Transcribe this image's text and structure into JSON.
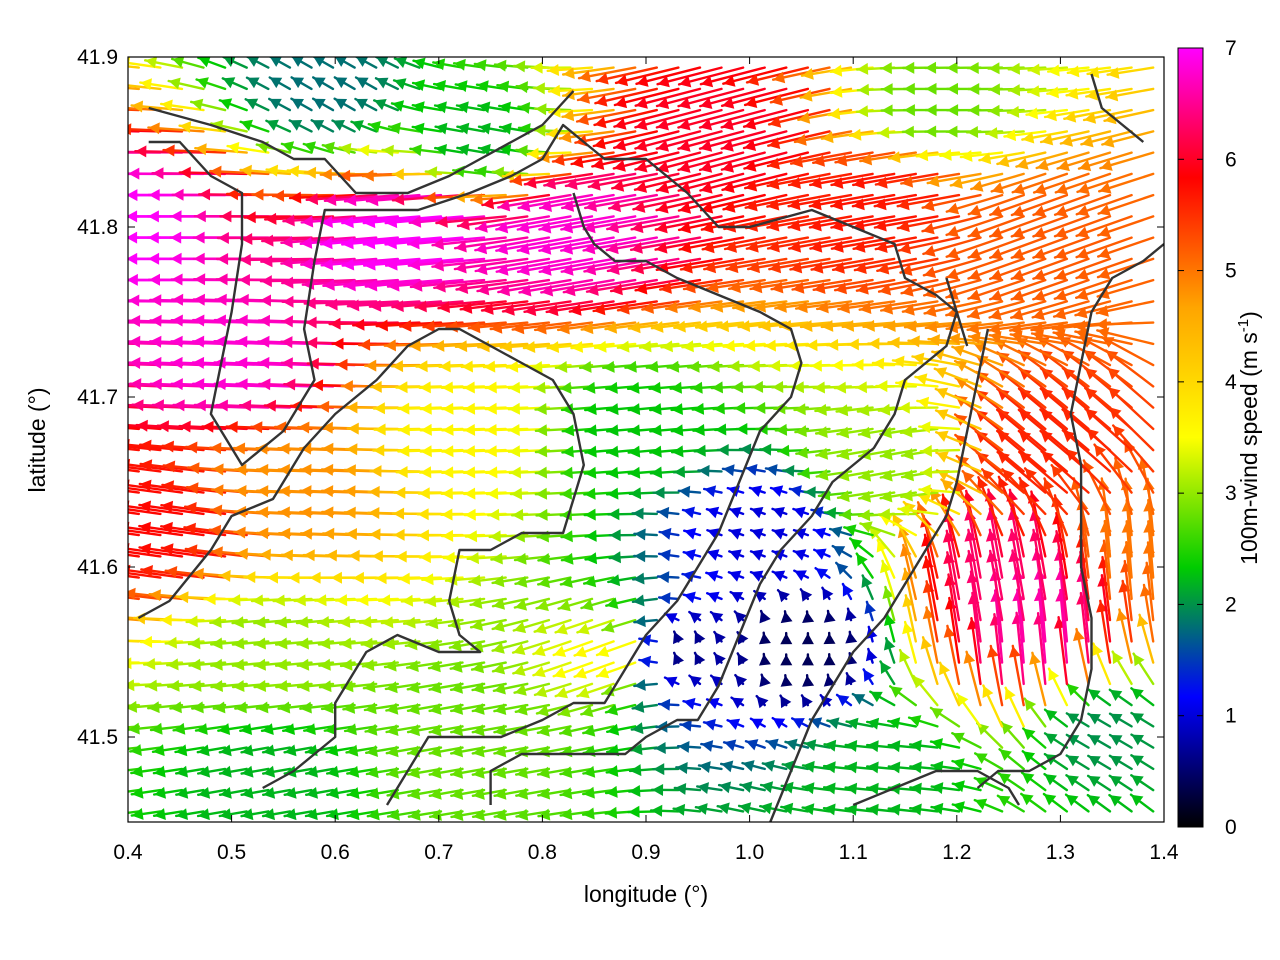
{
  "chart_data": {
    "type": "vector-field",
    "xlabel": "longitude (°)",
    "ylabel": "latitude (°)",
    "xlim": [
      0.4,
      1.4
    ],
    "ylim": [
      41.45,
      41.9
    ],
    "xticks": [
      0.4,
      0.5,
      0.6,
      0.7,
      0.8,
      0.9,
      1.0,
      1.1,
      1.2,
      1.3,
      1.4
    ],
    "xtick_labels": [
      "0.4",
      "0.5",
      "0.6",
      "0.7",
      "0.8",
      "0.9",
      "1.0",
      "1.1",
      "1.2",
      "1.3",
      "1.4"
    ],
    "yticks": [
      41.5,
      41.6,
      41.7,
      41.8,
      41.9
    ],
    "ytick_labels": [
      "41.5",
      "41.6",
      "41.7",
      "41.8",
      "41.9"
    ],
    "grid": false,
    "colorbar": {
      "label_main": "100m-wind speed (m s",
      "label_sup": "-1",
      "label_end": ")",
      "range": [
        0,
        7
      ],
      "ticks": [
        0,
        1,
        2,
        3,
        4,
        5,
        6,
        7
      ],
      "tick_labels": [
        "0",
        "1",
        "2",
        "3",
        "4",
        "5",
        "6",
        "7"
      ],
      "stops": [
        "#000000",
        "#0000ff",
        "#00cc00",
        "#ffff00",
        "#ffa500",
        "#ff0000",
        "#ff00ff"
      ]
    },
    "arrow_grid": {
      "nx": 48,
      "ny": 36
    },
    "wind_regimes": [
      {
        "lon": 0.45,
        "lat": 41.8,
        "speed": 7.0,
        "dir_deg": 180
      },
      {
        "lon": 0.55,
        "lat": 41.72,
        "speed": 6.8,
        "dir_deg": 178
      },
      {
        "lon": 0.7,
        "lat": 41.8,
        "speed": 7.0,
        "dir_deg": 185
      },
      {
        "lon": 0.85,
        "lat": 41.8,
        "speed": 6.8,
        "dir_deg": 190
      },
      {
        "lon": 1.0,
        "lat": 41.86,
        "speed": 6.0,
        "dir_deg": 195
      },
      {
        "lon": 1.15,
        "lat": 41.82,
        "speed": 5.7,
        "dir_deg": 190
      },
      {
        "lon": 1.3,
        "lat": 41.8,
        "speed": 5.2,
        "dir_deg": 200
      },
      {
        "lon": 1.2,
        "lat": 41.87,
        "speed": 2.8,
        "dir_deg": 180
      },
      {
        "lon": 0.75,
        "lat": 41.85,
        "speed": 2.2,
        "dir_deg": 170
      },
      {
        "lon": 0.6,
        "lat": 41.88,
        "speed": 1.8,
        "dir_deg": 150
      },
      {
        "lon": 0.45,
        "lat": 41.62,
        "speed": 5.8,
        "dir_deg": 172
      },
      {
        "lon": 0.6,
        "lat": 41.65,
        "speed": 4.8,
        "dir_deg": 178
      },
      {
        "lon": 0.75,
        "lat": 41.68,
        "speed": 3.6,
        "dir_deg": 182
      },
      {
        "lon": 0.9,
        "lat": 41.68,
        "speed": 2.3,
        "dir_deg": 185
      },
      {
        "lon": 1.02,
        "lat": 41.62,
        "speed": 1.0,
        "dir_deg": 160
      },
      {
        "lon": 1.05,
        "lat": 41.55,
        "speed": 0.4,
        "dir_deg": 90
      },
      {
        "lon": 0.93,
        "lat": 41.55,
        "speed": 0.6,
        "dir_deg": 110
      },
      {
        "lon": 0.55,
        "lat": 41.55,
        "speed": 3.0,
        "dir_deg": 185
      },
      {
        "lon": 0.55,
        "lat": 41.48,
        "speed": 2.2,
        "dir_deg": 190
      },
      {
        "lon": 0.75,
        "lat": 41.5,
        "speed": 2.8,
        "dir_deg": 190
      },
      {
        "lon": 0.88,
        "lat": 41.55,
        "speed": 3.6,
        "dir_deg": 200
      },
      {
        "lon": 1.15,
        "lat": 41.66,
        "speed": 3.0,
        "dir_deg": 190
      },
      {
        "lon": 1.25,
        "lat": 41.58,
        "speed": 6.3,
        "dir_deg": 100
      },
      {
        "lon": 1.28,
        "lat": 41.55,
        "speed": 6.6,
        "dir_deg": 95
      },
      {
        "lon": 1.3,
        "lat": 41.66,
        "speed": 5.6,
        "dir_deg": 140
      },
      {
        "lon": 1.15,
        "lat": 41.48,
        "speed": 2.2,
        "dir_deg": 175
      },
      {
        "lon": 1.35,
        "lat": 41.5,
        "speed": 2.0,
        "dir_deg": 150
      },
      {
        "lon": 1.38,
        "lat": 41.6,
        "speed": 5.0,
        "dir_deg": 95
      }
    ],
    "coastlines": [
      {
        "name": "contour-a",
        "points": [
          [
            0.42,
            41.87
          ],
          [
            0.48,
            41.86
          ],
          [
            0.53,
            41.85
          ],
          [
            0.56,
            41.84
          ],
          [
            0.59,
            41.84
          ],
          [
            0.62,
            41.82
          ],
          [
            0.67,
            41.82
          ],
          [
            0.71,
            41.83
          ],
          [
            0.74,
            41.84
          ],
          [
            0.77,
            41.85
          ],
          [
            0.8,
            41.86
          ],
          [
            0.83,
            41.88
          ]
        ]
      },
      {
        "name": "contour-b",
        "points": [
          [
            0.42,
            41.85
          ],
          [
            0.45,
            41.85
          ],
          [
            0.48,
            41.83
          ],
          [
            0.51,
            41.82
          ],
          [
            0.51,
            41.79
          ],
          [
            0.5,
            41.75
          ],
          [
            0.49,
            41.72
          ],
          [
            0.48,
            41.69
          ],
          [
            0.51,
            41.66
          ],
          [
            0.55,
            41.68
          ],
          [
            0.58,
            41.71
          ],
          [
            0.57,
            41.74
          ],
          [
            0.58,
            41.78
          ],
          [
            0.59,
            41.81
          ],
          [
            0.62,
            41.81
          ],
          [
            0.68,
            41.81
          ],
          [
            0.73,
            41.82
          ],
          [
            0.77,
            41.83
          ],
          [
            0.8,
            41.84
          ],
          [
            0.82,
            41.86
          ],
          [
            0.84,
            41.85
          ],
          [
            0.86,
            41.84
          ],
          [
            0.9,
            41.84
          ],
          [
            0.94,
            41.82
          ],
          [
            0.97,
            41.8
          ],
          [
            1.0,
            41.8
          ],
          [
            1.06,
            41.81
          ],
          [
            1.1,
            41.8
          ],
          [
            1.14,
            41.79
          ],
          [
            1.15,
            41.77
          ],
          [
            1.18,
            41.76
          ],
          [
            1.2,
            41.75
          ],
          [
            1.21,
            41.73
          ]
        ]
      },
      {
        "name": "contour-c",
        "points": [
          [
            0.41,
            41.57
          ],
          [
            0.44,
            41.58
          ],
          [
            0.48,
            41.61
          ],
          [
            0.5,
            41.63
          ],
          [
            0.54,
            41.64
          ],
          [
            0.57,
            41.67
          ],
          [
            0.6,
            41.69
          ],
          [
            0.62,
            41.7
          ],
          [
            0.64,
            41.71
          ],
          [
            0.67,
            41.73
          ],
          [
            0.7,
            41.74
          ],
          [
            0.72,
            41.74
          ],
          [
            0.75,
            41.73
          ],
          [
            0.78,
            41.72
          ],
          [
            0.81,
            41.71
          ],
          [
            0.83,
            41.69
          ],
          [
            0.84,
            41.66
          ],
          [
            0.83,
            41.64
          ],
          [
            0.82,
            41.62
          ],
          [
            0.78,
            41.62
          ],
          [
            0.75,
            41.61
          ],
          [
            0.72,
            41.61
          ],
          [
            0.71,
            41.58
          ],
          [
            0.72,
            41.56
          ],
          [
            0.74,
            41.55
          ],
          [
            0.7,
            41.55
          ],
          [
            0.66,
            41.56
          ],
          [
            0.63,
            41.55
          ],
          [
            0.61,
            41.53
          ],
          [
            0.6,
            41.52
          ],
          [
            0.6,
            41.5
          ],
          [
            0.58,
            41.49
          ],
          [
            0.56,
            41.48
          ],
          [
            0.53,
            41.47
          ]
        ]
      },
      {
        "name": "contour-d",
        "points": [
          [
            0.65,
            41.46
          ],
          [
            0.67,
            41.48
          ],
          [
            0.69,
            41.5
          ],
          [
            0.72,
            41.5
          ],
          [
            0.76,
            41.5
          ],
          [
            0.8,
            41.51
          ],
          [
            0.83,
            41.52
          ],
          [
            0.86,
            41.52
          ],
          [
            0.88,
            41.54
          ],
          [
            0.9,
            41.56
          ],
          [
            0.93,
            41.58
          ],
          [
            0.95,
            41.6
          ],
          [
            0.97,
            41.62
          ],
          [
            0.99,
            41.65
          ],
          [
            1.01,
            41.68
          ],
          [
            1.04,
            41.7
          ],
          [
            1.05,
            41.72
          ],
          [
            1.04,
            41.74
          ],
          [
            1.01,
            41.75
          ],
          [
            0.97,
            41.76
          ],
          [
            0.93,
            41.77
          ],
          [
            0.9,
            41.78
          ],
          [
            0.87,
            41.78
          ],
          [
            0.85,
            41.79
          ],
          [
            0.84,
            41.8
          ],
          [
            0.83,
            41.82
          ]
        ]
      },
      {
        "name": "contour-e",
        "points": [
          [
            0.75,
            41.46
          ],
          [
            0.75,
            41.48
          ],
          [
            0.78,
            41.49
          ],
          [
            0.82,
            41.49
          ],
          [
            0.85,
            41.49
          ],
          [
            0.88,
            41.49
          ],
          [
            0.9,
            41.5
          ],
          [
            0.93,
            41.51
          ],
          [
            0.95,
            41.51
          ],
          [
            0.97,
            41.53
          ],
          [
            0.99,
            41.56
          ],
          [
            1.01,
            41.59
          ],
          [
            1.03,
            41.61
          ],
          [
            1.06,
            41.63
          ],
          [
            1.08,
            41.65
          ],
          [
            1.1,
            41.66
          ],
          [
            1.12,
            41.67
          ],
          [
            1.14,
            41.69
          ],
          [
            1.15,
            41.71
          ],
          [
            1.17,
            41.72
          ],
          [
            1.19,
            41.73
          ],
          [
            1.2,
            41.75
          ],
          [
            1.19,
            41.77
          ]
        ]
      },
      {
        "name": "contour-f",
        "points": [
          [
            1.02,
            41.45
          ],
          [
            1.04,
            41.48
          ],
          [
            1.06,
            41.51
          ],
          [
            1.08,
            41.53
          ],
          [
            1.1,
            41.55
          ],
          [
            1.13,
            41.57
          ],
          [
            1.15,
            41.59
          ],
          [
            1.17,
            41.61
          ],
          [
            1.19,
            41.63
          ],
          [
            1.2,
            41.65
          ],
          [
            1.21,
            41.68
          ],
          [
            1.22,
            41.71
          ],
          [
            1.23,
            41.74
          ]
        ]
      },
      {
        "name": "contour-g",
        "points": [
          [
            1.22,
            41.47
          ],
          [
            1.24,
            41.48
          ],
          [
            1.27,
            41.48
          ],
          [
            1.3,
            41.49
          ],
          [
            1.32,
            41.51
          ],
          [
            1.33,
            41.54
          ],
          [
            1.33,
            41.57
          ],
          [
            1.32,
            41.6
          ],
          [
            1.32,
            41.63
          ],
          [
            1.32,
            41.66
          ],
          [
            1.31,
            41.69
          ],
          [
            1.32,
            41.72
          ],
          [
            1.33,
            41.75
          ],
          [
            1.35,
            41.77
          ],
          [
            1.38,
            41.78
          ],
          [
            1.4,
            41.79
          ]
        ]
      },
      {
        "name": "contour-h",
        "points": [
          [
            1.1,
            41.46
          ],
          [
            1.14,
            41.47
          ],
          [
            1.18,
            41.48
          ],
          [
            1.22,
            41.48
          ],
          [
            1.25,
            41.47
          ],
          [
            1.26,
            41.46
          ]
        ]
      },
      {
        "name": "contour-i",
        "points": [
          [
            1.33,
            41.89
          ],
          [
            1.34,
            41.87
          ],
          [
            1.36,
            41.86
          ],
          [
            1.38,
            41.85
          ]
        ]
      }
    ]
  }
}
